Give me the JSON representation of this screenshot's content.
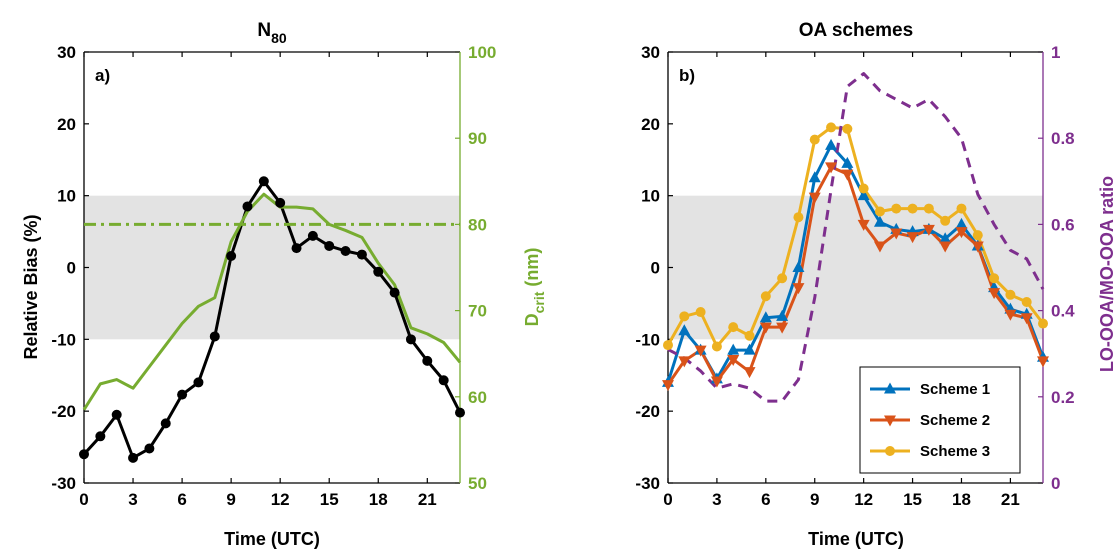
{
  "colors": {
    "black": "#000000",
    "green": "#77AC30",
    "purple": "#7E2F8E",
    "blue": "#0072BD",
    "orange": "#D95319",
    "yellow": "#EDB120",
    "band": "#E3E3E3"
  },
  "chart_data": [
    {
      "type": "line",
      "title": "N",
      "title_sub": "80",
      "panel_label": "a)",
      "xlabel": "Time (UTC)",
      "ylabel": "Relative Bias (%)",
      "y2label": "D",
      "y2label_sub": "crit",
      "y2label_unit": " (nm)",
      "xlim": [
        0,
        23
      ],
      "ylim": [
        -30,
        30
      ],
      "y2lim": [
        50,
        100
      ],
      "xticks": [
        "0",
        "3",
        "6",
        "9",
        "12",
        "15",
        "18",
        "21"
      ],
      "yticks": [
        "-30",
        "-20",
        "-10",
        "0",
        "10",
        "20",
        "30"
      ],
      "y2ticks": [
        "50",
        "60",
        "70",
        "80",
        "90",
        "100"
      ],
      "shaded_band": [
        -10,
        10
      ],
      "series": [
        {
          "axis": "left",
          "color": "black",
          "marker": "circle",
          "x": [
            0,
            1,
            2,
            3,
            4,
            5,
            6,
            7,
            8,
            9,
            10,
            11,
            12,
            13,
            14,
            15,
            16,
            17,
            18,
            19,
            20,
            21,
            22,
            23
          ],
          "y": [
            -26,
            -23.5,
            -20.5,
            -26.5,
            -25.2,
            -21.7,
            -17.7,
            -16,
            -9.6,
            1.6,
            8.5,
            12,
            9,
            2.7,
            4.4,
            3,
            2.3,
            1.8,
            -0.6,
            -3.5,
            -10,
            -13,
            -15.7,
            -20.2
          ]
        },
        {
          "axis": "right",
          "color": "green",
          "marker": "none",
          "x": [
            0,
            1,
            2,
            3,
            4,
            5,
            6,
            7,
            8,
            9,
            10,
            11,
            12,
            13,
            14,
            15,
            16,
            17,
            18,
            19,
            20,
            21,
            22,
            23
          ],
          "y": [
            58.5,
            61.5,
            62,
            61,
            63.5,
            66,
            68.5,
            70.5,
            71.5,
            78,
            81.5,
            83.5,
            82,
            82,
            81.8,
            80,
            79.3,
            78.5,
            75.5,
            73,
            68,
            67.3,
            66.3,
            64
          ]
        },
        {
          "axis": "right",
          "color": "green",
          "marker": "none",
          "dash": "dashdot",
          "x": [
            0,
            23
          ],
          "y": [
            80,
            80
          ]
        }
      ]
    },
    {
      "type": "line",
      "title": "OA schemes",
      "panel_label": "b)",
      "xlabel": "Time (UTC)",
      "ylabel": "",
      "y2label": "LO-OOA/MO-OOA ratio",
      "xlim": [
        0,
        23
      ],
      "ylim": [
        -30,
        30
      ],
      "y2lim": [
        0,
        1
      ],
      "xticks": [
        "0",
        "3",
        "6",
        "9",
        "12",
        "15",
        "18",
        "21"
      ],
      "yticks": [
        "-30",
        "-20",
        "-10",
        "0",
        "10",
        "20",
        "30"
      ],
      "y2ticks": [
        "0",
        "0.2",
        "0.4",
        "0.6",
        "0.8",
        "1"
      ],
      "shaded_band": [
        -10,
        10
      ],
      "legend": {
        "placement": "bottom-right",
        "entries": [
          "Scheme 1",
          "Scheme 2",
          "Scheme 3"
        ]
      },
      "series": [
        {
          "name": "Scheme 1",
          "axis": "left",
          "color": "blue",
          "marker": "triangle-up",
          "x": [
            0,
            1,
            2,
            3,
            4,
            5,
            6,
            7,
            8,
            9,
            10,
            11,
            12,
            13,
            14,
            15,
            16,
            17,
            18,
            19,
            20,
            21,
            22,
            23
          ],
          "y": [
            -16,
            -8.8,
            -11.5,
            -15.5,
            -11.5,
            -11.5,
            -7,
            -6.8,
            0,
            12.5,
            17,
            14.5,
            10,
            6.3,
            5.3,
            5,
            5.3,
            4,
            6,
            3,
            -2.8,
            -5.8,
            -6.5,
            -12.5
          ]
        },
        {
          "name": "Scheme 2",
          "axis": "left",
          "color": "orange",
          "marker": "triangle-down",
          "x": [
            0,
            1,
            2,
            3,
            4,
            5,
            6,
            7,
            8,
            9,
            10,
            11,
            12,
            13,
            14,
            15,
            16,
            17,
            18,
            19,
            20,
            21,
            22,
            23
          ],
          "y": [
            -16.3,
            -13,
            -11.5,
            -15.8,
            -12.8,
            -14.5,
            -8.3,
            -8.3,
            -2.8,
            9.8,
            14,
            13,
            6,
            3,
            4.8,
            4.3,
            5.3,
            3,
            5,
            3,
            -3.5,
            -6.5,
            -7,
            -13
          ]
        },
        {
          "name": "Scheme 3",
          "axis": "left",
          "color": "yellow",
          "marker": "circle",
          "x": [
            0,
            1,
            2,
            3,
            4,
            5,
            6,
            7,
            8,
            9,
            10,
            11,
            12,
            13,
            14,
            15,
            16,
            17,
            18,
            19,
            20,
            21,
            22,
            23
          ],
          "y": [
            -10.8,
            -6.8,
            -6.2,
            -11,
            -8.3,
            -9.5,
            -4,
            -1.5,
            7,
            17.8,
            19.5,
            19.3,
            11,
            7.8,
            8.2,
            8.2,
            8.2,
            6.5,
            8.2,
            4.5,
            -1.5,
            -3.8,
            -4.8,
            -7.8
          ]
        },
        {
          "axis": "right",
          "color": "purple",
          "marker": "none",
          "dash": "dashed",
          "x": [
            0,
            1,
            2,
            3,
            4,
            5,
            6,
            7,
            8,
            9,
            10,
            11,
            12,
            13,
            14,
            15,
            16,
            17,
            18,
            19,
            20,
            21,
            22,
            23
          ],
          "y": [
            0.31,
            0.29,
            0.26,
            0.22,
            0.23,
            0.22,
            0.19,
            0.19,
            0.24,
            0.43,
            0.68,
            0.92,
            0.95,
            0.91,
            0.89,
            0.87,
            0.89,
            0.85,
            0.8,
            0.67,
            0.6,
            0.54,
            0.52,
            0.45
          ]
        }
      ]
    }
  ]
}
